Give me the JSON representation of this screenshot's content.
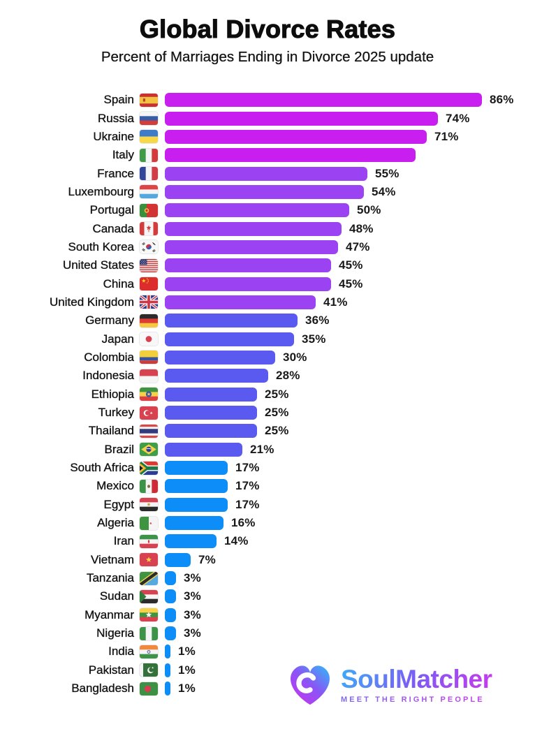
{
  "header": {
    "title": "Global Divorce Rates",
    "subtitle": "Percent of Marriages Ending in Divorce 2025 update"
  },
  "chart_data": {
    "type": "bar",
    "orientation": "horizontal",
    "title": "Global Divorce Rates",
    "subtitle": "Percent of Marriages Ending in Divorce 2025 update",
    "unit": "%",
    "xlim": [
      0,
      86
    ],
    "grid": false,
    "legend": false,
    "palette": {
      "magenta": "#c81ff0",
      "purple": "#9b43f2",
      "indigo": "#5b5af0",
      "blue": "#0d8df8"
    },
    "rows": [
      {
        "country": "Spain",
        "flag": "spain",
        "value": 86,
        "label": "86%",
        "color": "magenta"
      },
      {
        "country": "Russia",
        "flag": "russia",
        "value": 74,
        "label": "74%",
        "color": "magenta"
      },
      {
        "country": "Ukraine",
        "flag": "ukraine",
        "value": 71,
        "label": "71%",
        "color": "magenta"
      },
      {
        "country": "Italy",
        "flag": "italy",
        "value": 68,
        "label": "",
        "color": "magenta",
        "estimated": true
      },
      {
        "country": "France",
        "flag": "france",
        "value": 55,
        "label": "55%",
        "color": "purple"
      },
      {
        "country": "Luxembourg",
        "flag": "luxembourg",
        "value": 54,
        "label": "54%",
        "color": "purple"
      },
      {
        "country": "Portugal",
        "flag": "portugal",
        "value": 50,
        "label": "50%",
        "color": "purple"
      },
      {
        "country": "Canada",
        "flag": "canada",
        "value": 48,
        "label": "48%",
        "color": "purple"
      },
      {
        "country": "South Korea",
        "flag": "south-korea",
        "value": 47,
        "label": "47%",
        "color": "purple"
      },
      {
        "country": "United States",
        "flag": "united-states",
        "value": 45,
        "label": "45%",
        "color": "purple"
      },
      {
        "country": "China",
        "flag": "china",
        "value": 45,
        "label": "45%",
        "color": "purple"
      },
      {
        "country": "United Kingdom",
        "flag": "united-kingdom",
        "value": 41,
        "label": "41%",
        "color": "purple"
      },
      {
        "country": "Germany",
        "flag": "germany",
        "value": 36,
        "label": "36%",
        "color": "indigo"
      },
      {
        "country": "Japan",
        "flag": "japan",
        "value": 35,
        "label": "35%",
        "color": "indigo"
      },
      {
        "country": "Colombia",
        "flag": "colombia",
        "value": 30,
        "label": "30%",
        "color": "indigo"
      },
      {
        "country": "Indonesia",
        "flag": "indonesia",
        "value": 28,
        "label": "28%",
        "color": "indigo"
      },
      {
        "country": "Ethiopia",
        "flag": "ethiopia",
        "value": 25,
        "label": "25%",
        "color": "indigo"
      },
      {
        "country": "Turkey",
        "flag": "turkey",
        "value": 25,
        "label": "25%",
        "color": "indigo"
      },
      {
        "country": "Thailand",
        "flag": "thailand",
        "value": 25,
        "label": "25%",
        "color": "indigo"
      },
      {
        "country": "Brazil",
        "flag": "brazil",
        "value": 21,
        "label": "21%",
        "color": "indigo"
      },
      {
        "country": "South Africa",
        "flag": "south-africa",
        "value": 17,
        "label": "17%",
        "color": "blue"
      },
      {
        "country": "Mexico",
        "flag": "mexico",
        "value": 17,
        "label": "17%",
        "color": "blue"
      },
      {
        "country": "Egypt",
        "flag": "egypt",
        "value": 17,
        "label": "17%",
        "color": "blue"
      },
      {
        "country": "Algeria",
        "flag": "algeria",
        "value": 16,
        "label": "16%",
        "color": "blue"
      },
      {
        "country": "Iran",
        "flag": "iran",
        "value": 14,
        "label": "14%",
        "color": "blue"
      },
      {
        "country": "Vietnam",
        "flag": "vietnam",
        "value": 7,
        "label": "7%",
        "color": "blue"
      },
      {
        "country": "Tanzania",
        "flag": "tanzania",
        "value": 3,
        "label": "3%",
        "color": "blue"
      },
      {
        "country": "Sudan",
        "flag": "sudan",
        "value": 3,
        "label": "3%",
        "color": "blue"
      },
      {
        "country": "Myanmar",
        "flag": "myanmar",
        "value": 3,
        "label": "3%",
        "color": "blue"
      },
      {
        "country": "Nigeria",
        "flag": "nigeria",
        "value": 3,
        "label": "3%",
        "color": "blue"
      },
      {
        "country": "India",
        "flag": "india",
        "value": 1,
        "label": "1%",
        "color": "blue"
      },
      {
        "country": "Pakistan",
        "flag": "pakistan",
        "value": 1,
        "label": "1%",
        "color": "blue"
      },
      {
        "country": "Bangladesh",
        "flag": "bangladesh",
        "value": 1,
        "label": "1%",
        "color": "blue"
      }
    ]
  },
  "logo": {
    "brand": "SoulMatcher",
    "tagline": "MEET THE RIGHT PEOPLE",
    "gradient_from": "#41a5f7",
    "gradient_to": "#c33bee"
  }
}
